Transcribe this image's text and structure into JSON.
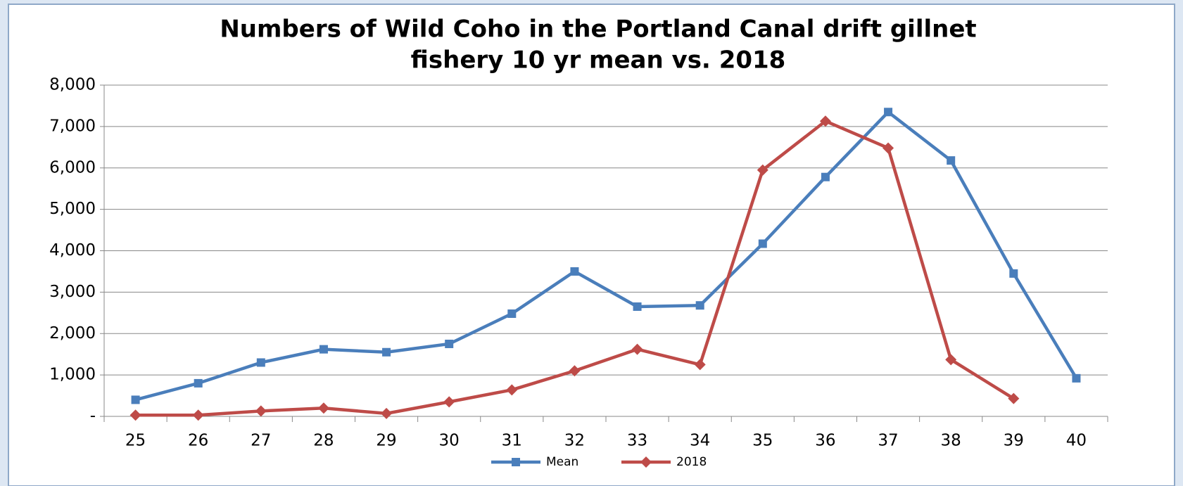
{
  "chart_data": {
    "type": "line",
    "title": [
      "Numbers of Wild Coho in the Portland Canal drift gillnet",
      "fishery 10 yr mean vs. 2018"
    ],
    "categories": [
      "25",
      "26",
      "27",
      "28",
      "29",
      "30",
      "31",
      "32",
      "33",
      "34",
      "35",
      "36",
      "37",
      "38",
      "39",
      "40"
    ],
    "series": [
      {
        "name": "Mean",
        "color": "#4a7ebb",
        "marker": "square",
        "values": [
          400,
          800,
          1300,
          1620,
          1550,
          1750,
          2480,
          3500,
          2650,
          2680,
          4170,
          5780,
          7350,
          6180,
          3450,
          920
        ]
      },
      {
        "name": "2018",
        "color": "#be4b48",
        "marker": "diamond",
        "values": [
          30,
          30,
          130,
          200,
          70,
          350,
          640,
          1100,
          1620,
          1250,
          5950,
          7130,
          6480,
          1370,
          430,
          null
        ]
      }
    ],
    "ylim": [
      0,
      8000
    ],
    "yticks": [
      {
        "value": 0,
        "label": "-"
      },
      {
        "value": 1000,
        "label": "1,000"
      },
      {
        "value": 2000,
        "label": "2,000"
      },
      {
        "value": 3000,
        "label": "3,000"
      },
      {
        "value": 4000,
        "label": "4,000"
      },
      {
        "value": 5000,
        "label": "5,000"
      },
      {
        "value": 6000,
        "label": "6,000"
      },
      {
        "value": 7000,
        "label": "7,000"
      },
      {
        "value": 8000,
        "label": "8,000"
      }
    ],
    "grid": true,
    "legend": "bottom"
  }
}
